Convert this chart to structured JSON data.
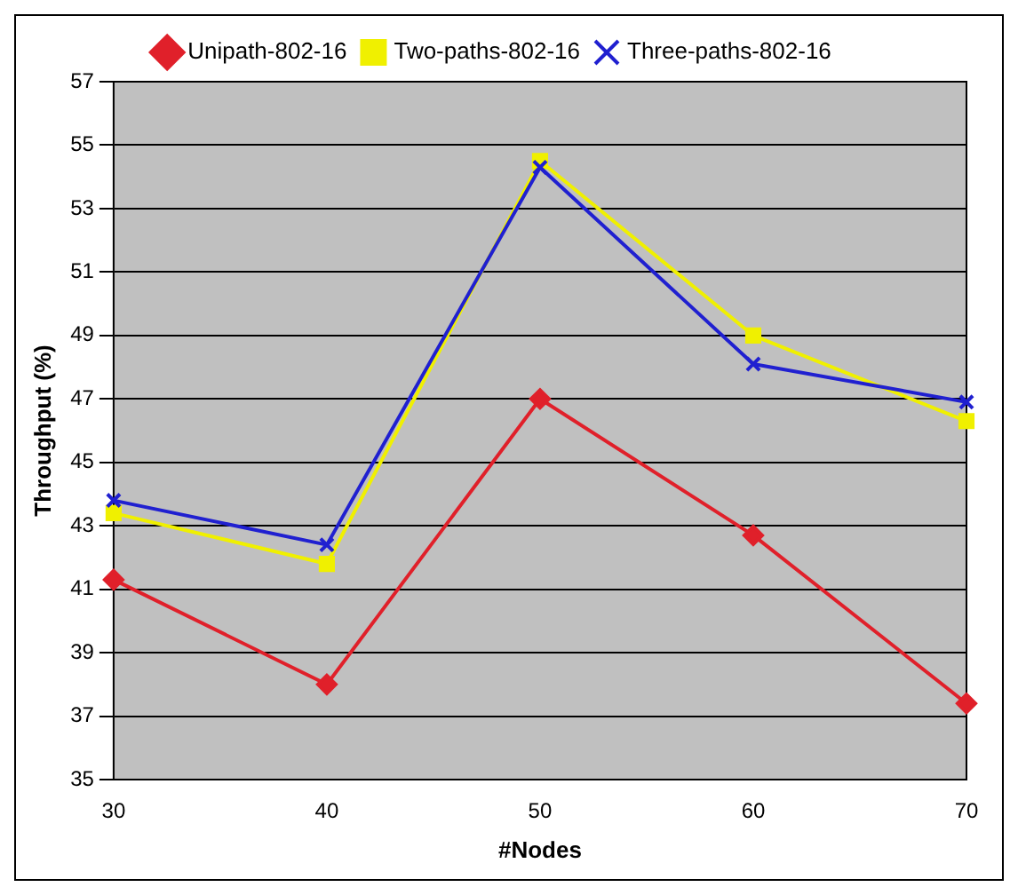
{
  "chart_data": {
    "type": "line",
    "xlabel": "#Nodes",
    "ylabel": "Throughput (%)",
    "x": [
      30,
      40,
      50,
      60,
      70
    ],
    "series": [
      {
        "name": "Unipath-802-16",
        "color": "#e0202a",
        "marker": "diamond",
        "values": [
          41.3,
          38.0,
          47.0,
          42.7,
          37.4
        ]
      },
      {
        "name": "Two-paths-802-16",
        "color": "#f0f000",
        "marker": "square",
        "values": [
          43.4,
          41.8,
          54.5,
          49.0,
          46.3
        ]
      },
      {
        "name": "Three-paths-802-16",
        "color": "#2020d0",
        "marker": "cross",
        "values": [
          43.8,
          42.4,
          54.3,
          48.1,
          46.9
        ]
      }
    ],
    "xlim": [
      30,
      70
    ],
    "xticks": [
      30,
      40,
      50,
      60,
      70
    ],
    "ylim": [
      35,
      57
    ],
    "yticks": [
      35,
      37,
      39,
      41,
      43,
      45,
      47,
      49,
      51,
      53,
      55,
      57
    ],
    "grid": "y",
    "legend": "top"
  }
}
